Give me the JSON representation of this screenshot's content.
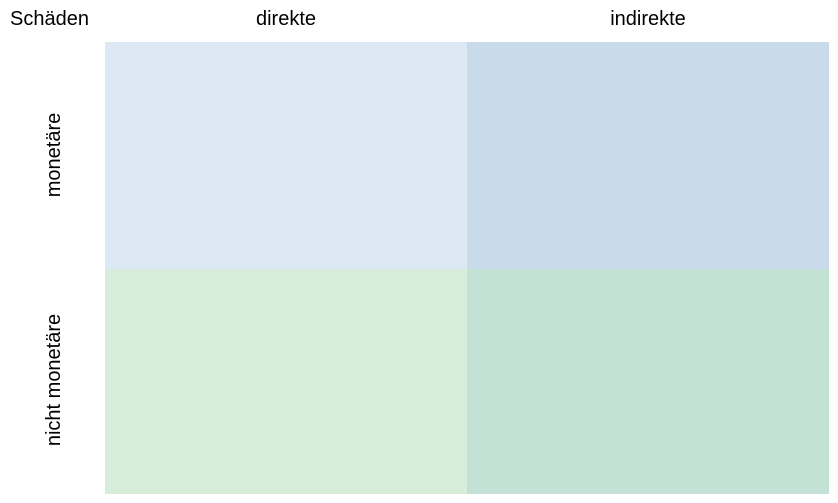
{
  "title": "Schäden",
  "columns": [
    {
      "label": "direkte"
    },
    {
      "label": "indirekte"
    }
  ],
  "rows": [
    {
      "label": "monetäre"
    },
    {
      "label": "nicht monetäre"
    }
  ],
  "quadrants": [
    {
      "row": "monetäre",
      "column": "direkte",
      "color": "#dce8f3"
    },
    {
      "row": "monetäre",
      "column": "indirekte",
      "color": "#c9daea"
    },
    {
      "row": "nicht monetäre",
      "column": "direkte",
      "color": "#d8edd9"
    },
    {
      "row": "nicht monetäre",
      "column": "indirekte",
      "color": "#c3e2d5"
    }
  ]
}
